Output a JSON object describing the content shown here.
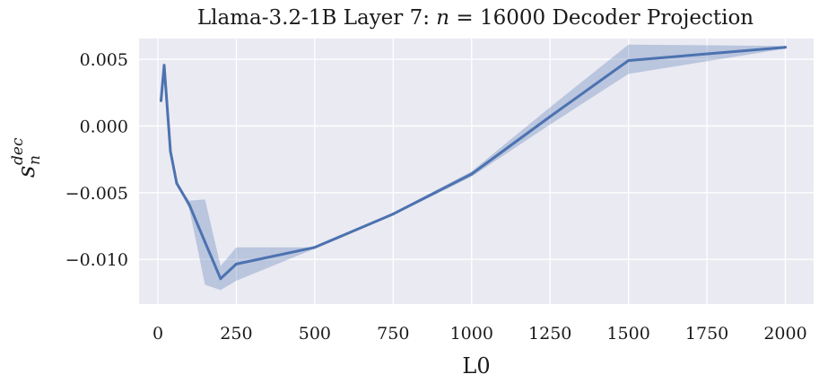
{
  "chart_data": {
    "type": "line",
    "title": "Llama-3.2-1B Layer 7: n = 16000 Decoder Projection",
    "title_parts": {
      "prefix": "Llama-3.2-1B Layer 7: ",
      "var": "n",
      "suffix": " = 16000 Decoder Projection"
    },
    "xlabel": "L0",
    "ylabel": {
      "main": "s",
      "sub": "n",
      "sup": "dec"
    },
    "xlim": [
      -60,
      2090
    ],
    "ylim": [
      -0.01335,
      0.00655
    ],
    "x_ticks": [
      0,
      250,
      500,
      750,
      1000,
      1250,
      1500,
      1750,
      2000
    ],
    "x_tick_labels": [
      "0",
      "250",
      "500",
      "750",
      "1000",
      "1250",
      "1500",
      "1750",
      "2000"
    ],
    "y_ticks": [
      0.005,
      0.0,
      -0.005,
      -0.01
    ],
    "y_tick_labels": [
      "0.005",
      "0.000",
      "−0.005",
      "−0.010"
    ],
    "grid": true,
    "colors": {
      "background": "#eaeaf2",
      "grid": "#ffffff",
      "line": "#4c72b0",
      "band": "#4c72b0"
    },
    "series": [
      {
        "x": [
          10,
          20,
          40,
          60,
          100,
          150,
          200,
          250,
          500,
          750,
          1000,
          1250,
          1500,
          2000
        ],
        "y": [
          0.0019,
          0.00455,
          -0.0019,
          -0.0043,
          -0.0059,
          -0.0087,
          -0.01145,
          -0.01035,
          -0.0091,
          -0.0066,
          -0.0036,
          0.0007,
          0.0049,
          0.0059
        ],
        "upper": [
          0.0019,
          0.00455,
          -0.0019,
          -0.0043,
          -0.0056,
          -0.0055,
          -0.0105,
          -0.0091,
          -0.0091,
          -0.0065,
          -0.0034,
          0.0014,
          0.0061,
          0.006
        ],
        "lower": [
          0.0019,
          0.00455,
          -0.0019,
          -0.0043,
          -0.0062,
          -0.0119,
          -0.0123,
          -0.0116,
          -0.0092,
          -0.0067,
          -0.0038,
          0.0001,
          0.0039,
          0.0058
        ]
      }
    ]
  }
}
